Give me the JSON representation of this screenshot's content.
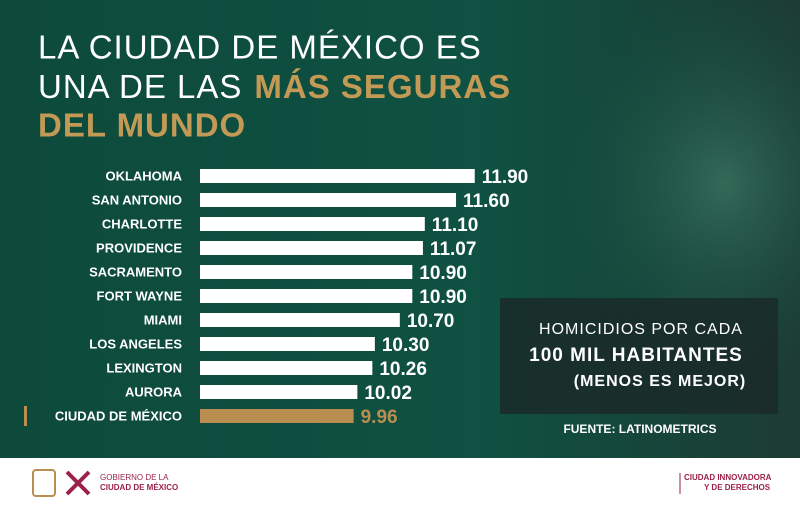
{
  "chart_data": {
    "type": "bar",
    "orientation": "horizontal",
    "title": [
      "LA CIUDAD DE MÉXICO ES",
      "UNA DE LAS",
      "MÁS SEGURAS",
      "DEL MUNDO"
    ],
    "categories": [
      "OKLAHOMA",
      "SAN ANTONIO",
      "CHARLOTTE",
      "PROVIDENCE",
      "SACRAMENTO",
      "FORT WAYNE",
      "MIAMI",
      "LOS ANGELES",
      "LEXINGTON",
      "AURORA",
      "CIUDAD DE MÉXICO"
    ],
    "values": [
      11.9,
      11.6,
      11.1,
      11.07,
      10.9,
      10.9,
      10.7,
      10.3,
      10.26,
      10.02,
      9.96
    ],
    "value_labels": [
      "11.90",
      "11.60",
      "11.10",
      "11.07",
      "10.90",
      "10.90",
      "10.70",
      "10.30",
      "10.26",
      "10.02",
      "9.96"
    ],
    "colors": [
      "#ffffff",
      "#ffffff",
      "#ffffff",
      "#ffffff",
      "#ffffff",
      "#ffffff",
      "#ffffff",
      "#ffffff",
      "#ffffff",
      "#ffffff",
      "#b98e4f"
    ],
    "xlim": [
      7.5,
      12
    ],
    "note": [
      "HOMICIDIOS POR CADA",
      "100 MIL HABITANTES",
      "(MENOS ES MEJOR)"
    ],
    "source": "FUENTE: LATINOMETRICS"
  },
  "footer": {
    "left": [
      "GOBIERNO DE LA",
      "CIUDAD DE MÉXICO"
    ],
    "right": [
      "CIUDAD INNOVADORA",
      "Y DE DERECHOS"
    ]
  }
}
